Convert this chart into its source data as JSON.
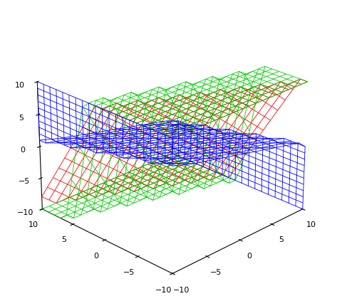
{
  "plane1": {
    "coeffs": [
      1,
      2,
      1,
      2
    ],
    "color": "#ff0000"
  },
  "plane2": {
    "coeffs": [
      2,
      6,
      1,
      7
    ],
    "color": "#00cc00"
  },
  "plane3": {
    "coeffs": [
      1,
      1,
      4,
      3
    ],
    "color": "#0000ff"
  },
  "xlim": [
    -10,
    10
  ],
  "ylim": [
    -10,
    10
  ],
  "zlim": [
    -10,
    10
  ],
  "n_points": 21,
  "elev": 25,
  "azim": -135,
  "figsize": [
    4.73,
    4.23
  ],
  "dpi": 100
}
